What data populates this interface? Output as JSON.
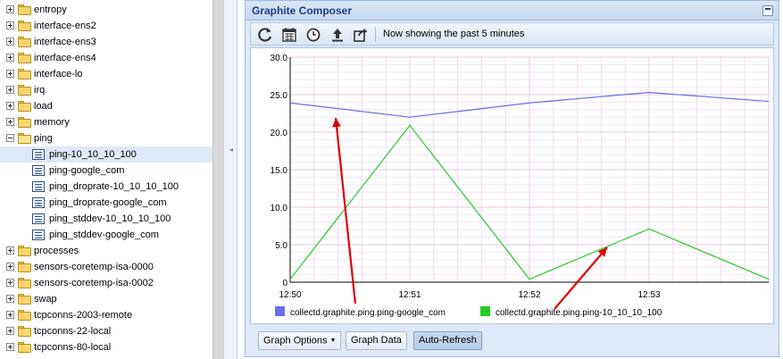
{
  "tree": {
    "items": [
      {
        "label": "entropy",
        "type": "folder"
      },
      {
        "label": "interface-ens2",
        "type": "folder"
      },
      {
        "label": "interface-ens3",
        "type": "folder"
      },
      {
        "label": "interface-ens4",
        "type": "folder"
      },
      {
        "label": "interface-lo",
        "type": "folder"
      },
      {
        "label": "irq",
        "type": "folder"
      },
      {
        "label": "load",
        "type": "folder"
      },
      {
        "label": "memory",
        "type": "folder"
      },
      {
        "label": "ping",
        "type": "folder-open"
      },
      {
        "label": "ping-10_10_10_100",
        "type": "leaf",
        "selected": true
      },
      {
        "label": "ping-google_com",
        "type": "leaf"
      },
      {
        "label": "ping_droprate-10_10_10_100",
        "type": "leaf"
      },
      {
        "label": "ping_droprate-google_com",
        "type": "leaf"
      },
      {
        "label": "ping_stddev-10_10_10_100",
        "type": "leaf"
      },
      {
        "label": "ping_stddev-google_com",
        "type": "leaf"
      },
      {
        "label": "processes",
        "type": "folder"
      },
      {
        "label": "sensors-coretemp-isa-0000",
        "type": "folder"
      },
      {
        "label": "sensors-coretemp-isa-0002",
        "type": "folder"
      },
      {
        "label": "swap",
        "type": "folder"
      },
      {
        "label": "tcpconns-2003-remote",
        "type": "folder"
      },
      {
        "label": "tcpconns-22-local",
        "type": "folder"
      },
      {
        "label": "tcpconns-80-local",
        "type": "folder"
      }
    ]
  },
  "composer": {
    "title": "Graphite Composer",
    "status": "Now showing the past 5 minutes",
    "toolbar_icons": [
      "refresh-icon",
      "calendar-icon",
      "clock-icon",
      "upload-icon",
      "share-icon"
    ],
    "buttons": {
      "graph_options": "Graph Options",
      "graph_data": "Graph Data",
      "auto_refresh": "Auto-Refresh"
    }
  },
  "colors": {
    "series_blue": "#6b6bef",
    "series_green": "#22cc22",
    "annotation_arrow": "#e00000",
    "panel_border": "#99bbe8",
    "title_text": "#15428b"
  },
  "chart_data": {
    "type": "line",
    "x": [
      "12:50",
      "12:51",
      "12:52",
      "12:53",
      "12:54"
    ],
    "x_tick_labels": [
      "12:50",
      "12:51",
      "12:52",
      "12:53"
    ],
    "y_tick_labels": [
      "0",
      "5.0",
      "10.0",
      "15.0",
      "20.0",
      "25.0",
      "30.0"
    ],
    "ylim": [
      0,
      30
    ],
    "grid": true,
    "legend": "bottom",
    "series": [
      {
        "name": "collectd.graphite.ping.ping-google_com",
        "color": "#6b6bef",
        "values": [
          23.9,
          22.0,
          23.9,
          25.3,
          24.1
        ]
      },
      {
        "name": "collectd.graphite.ping.ping-10_10_10_100",
        "color": "#22cc22",
        "values": [
          0.4,
          20.9,
          0.4,
          7.1,
          0.4
        ]
      }
    ]
  }
}
